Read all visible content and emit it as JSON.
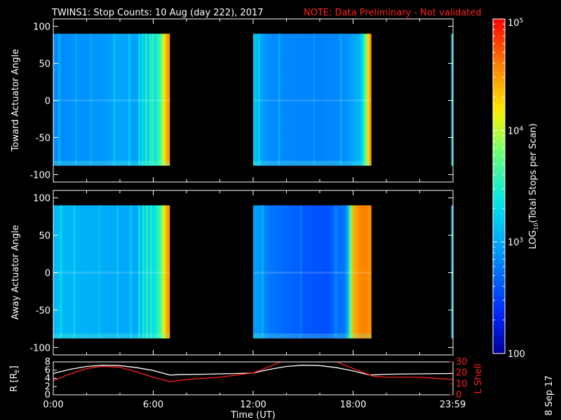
{
  "header": {
    "title": "TWINS1: Stop Counts: 10 Aug (day 222), 2017",
    "note": "NOTE: Data Preliminary - Not validated"
  },
  "footer": {
    "stamp": "8 Sep 17"
  },
  "colors": {
    "background": "#000000",
    "axes": "#ffffff",
    "note": "#ff2020",
    "r_line": "#ffffff",
    "l_shell_line": "#ff2020"
  },
  "chart_data": [
    {
      "type": "heatmap",
      "id": "toward",
      "ylabel": "Toward Actuator Angle",
      "ylim": [
        -110,
        110
      ],
      "yticks": [
        -100,
        -50,
        0,
        50,
        100
      ],
      "xlim": [
        0,
        24
      ],
      "angle_range": [
        -88,
        90
      ],
      "blocks": [
        {
          "x": [
            0.0,
            7.0
          ],
          "profile": [
            [
              0.0,
              2.85
            ],
            [
              3.0,
              2.9
            ],
            [
              4.0,
              3.0
            ],
            [
              5.0,
              2.95
            ],
            [
              5.6,
              3.2
            ],
            [
              6.0,
              3.3
            ],
            [
              6.4,
              3.6
            ],
            [
              6.7,
              4.2
            ],
            [
              6.85,
              4.5
            ],
            [
              7.0,
              4.5
            ]
          ],
          "streaks": [
            [
              0.3,
              0.2
            ],
            [
              1.3,
              0.15
            ],
            [
              2.2,
              0.15
            ],
            [
              3.6,
              0.2
            ],
            [
              4.5,
              0.25
            ],
            [
              5.1,
              0.35
            ],
            [
              5.3,
              0.3
            ],
            [
              5.5,
              0.4
            ],
            [
              5.75,
              0.3
            ],
            [
              5.9,
              0.35
            ]
          ]
        },
        {
          "x": [
            12.0,
            19.1
          ],
          "profile": [
            [
              0.0,
              2.95
            ],
            [
              12.1,
              3.2
            ],
            [
              12.3,
              3.0
            ],
            [
              13.0,
              2.85
            ],
            [
              16.0,
              2.8
            ],
            [
              17.5,
              2.85
            ],
            [
              18.5,
              3.1
            ],
            [
              18.9,
              4.2
            ],
            [
              19.1,
              4.6
            ]
          ],
          "streaks": [
            [
              12.3,
              0.25
            ],
            [
              13.5,
              0.2
            ],
            [
              15.6,
              0.15
            ],
            [
              17.2,
              0.2
            ]
          ]
        },
        {
          "x": [
            23.9,
            24.0
          ],
          "profile": [
            [
              0.0,
              3.3
            ],
            [
              24.0,
              3.3
            ]
          ],
          "streaks": []
        }
      ]
    },
    {
      "type": "heatmap",
      "id": "away",
      "ylabel": "Away Actuator Angle",
      "ylim": [
        -110,
        110
      ],
      "yticks": [
        -100,
        -50,
        0,
        50,
        100
      ],
      "xlim": [
        0,
        24
      ],
      "angle_range": [
        -88,
        90
      ],
      "blocks": [
        {
          "x": [
            0.0,
            7.0
          ],
          "profile": [
            [
              0.0,
              3.1
            ],
            [
              2.0,
              3.05
            ],
            [
              4.0,
              3.0
            ],
            [
              5.0,
              3.0
            ],
            [
              5.6,
              3.2
            ],
            [
              6.0,
              3.3
            ],
            [
              6.4,
              3.6
            ],
            [
              6.7,
              4.2
            ],
            [
              6.85,
              4.5
            ],
            [
              7.0,
              4.5
            ]
          ],
          "streaks": [
            [
              0.4,
              0.25
            ],
            [
              1.2,
              0.2
            ],
            [
              2.7,
              0.15
            ],
            [
              3.8,
              0.2
            ],
            [
              4.6,
              0.25
            ],
            [
              5.1,
              0.35
            ],
            [
              5.35,
              0.35
            ],
            [
              5.55,
              0.4
            ],
            [
              5.8,
              0.3
            ]
          ]
        },
        {
          "x": [
            12.0,
            19.1
          ],
          "profile": [
            [
              0.0,
              2.9
            ],
            [
              12.2,
              2.95
            ],
            [
              13.0,
              2.75
            ],
            [
              15.0,
              2.6
            ],
            [
              16.5,
              2.55
            ],
            [
              17.0,
              2.7
            ],
            [
              17.6,
              2.75
            ],
            [
              18.0,
              4.4
            ],
            [
              18.6,
              4.6
            ],
            [
              19.1,
              4.5
            ]
          ],
          "streaks": [
            [
              12.5,
              0.2
            ],
            [
              14.8,
              0.15
            ],
            [
              16.9,
              0.2
            ]
          ]
        },
        {
          "x": [
            23.9,
            24.0
          ],
          "profile": [
            [
              0.0,
              3.3
            ],
            [
              24.0,
              3.3
            ]
          ],
          "streaks": []
        }
      ]
    },
    {
      "type": "line",
      "id": "orbit",
      "ylabel": "R [R",
      "ylabel_sub": "E",
      "ylabel_end": "]",
      "y2label": "L Shell",
      "ylim": [
        0,
        8
      ],
      "yticks": [
        0,
        2,
        4,
        6,
        8
      ],
      "y2lim": [
        0,
        30
      ],
      "y2ticks": [
        0,
        10,
        20,
        30
      ],
      "xlim": [
        0,
        24
      ],
      "xlabel": "Time (UT)",
      "xticks": [
        {
          "v": 0,
          "label": "0:00"
        },
        {
          "v": 6,
          "label": "6:00"
        },
        {
          "v": 12,
          "label": "12:00"
        },
        {
          "v": 18,
          "label": "18:00"
        },
        {
          "v": 23.98,
          "label": "23:59"
        }
      ],
      "series": [
        {
          "axis": "y",
          "points": [
            [
              0,
              5.2
            ],
            [
              1,
              6.2
            ],
            [
              2,
              6.9
            ],
            [
              3,
              7.2
            ],
            [
              4,
              7.1
            ],
            [
              5,
              6.6
            ],
            [
              6,
              5.9
            ],
            [
              7,
              4.8
            ],
            [
              7.5,
              4.9
            ],
            [
              9,
              5.0
            ],
            [
              11,
              5.2
            ],
            [
              12,
              5.3
            ],
            [
              13,
              6.2
            ],
            [
              14,
              6.9
            ],
            [
              15,
              7.2
            ],
            [
              16,
              7.1
            ],
            [
              17,
              6.6
            ],
            [
              18,
              5.8
            ],
            [
              19,
              4.8
            ],
            [
              20,
              5.0
            ],
            [
              22,
              5.1
            ],
            [
              24,
              5.2
            ]
          ]
        },
        {
          "axis": "y2",
          "points": [
            [
              0,
              13
            ],
            [
              1,
              19
            ],
            [
              2,
              24
            ],
            [
              3,
              26
            ],
            [
              4,
              25
            ],
            [
              5,
              21
            ],
            [
              6,
              16
            ],
            [
              7,
              12
            ],
            [
              8,
              14
            ],
            [
              10,
              16
            ],
            [
              12,
              20
            ],
            [
              13,
              26
            ],
            [
              13.8,
              31
            ],
            [
              16.9,
              31
            ],
            [
              17.5,
              27
            ],
            [
              18.5,
              21
            ],
            [
              19.2,
              17
            ],
            [
              20,
              16
            ],
            [
              22,
              16
            ],
            [
              24,
              14
            ]
          ]
        }
      ]
    },
    {
      "type": "colorbar",
      "id": "colorbar",
      "label_log": "LOG",
      "label_log_sub": "10",
      "label_rest": "(Total Stops per Scan)",
      "range_log": [
        2,
        5
      ],
      "ticks": [
        {
          "v": 2,
          "base": "100",
          "exp": ""
        },
        {
          "v": 3,
          "base": "10",
          "exp": "3"
        },
        {
          "v": 4,
          "base": "10",
          "exp": "4"
        },
        {
          "v": 5,
          "base": "10",
          "exp": "5"
        }
      ]
    }
  ]
}
